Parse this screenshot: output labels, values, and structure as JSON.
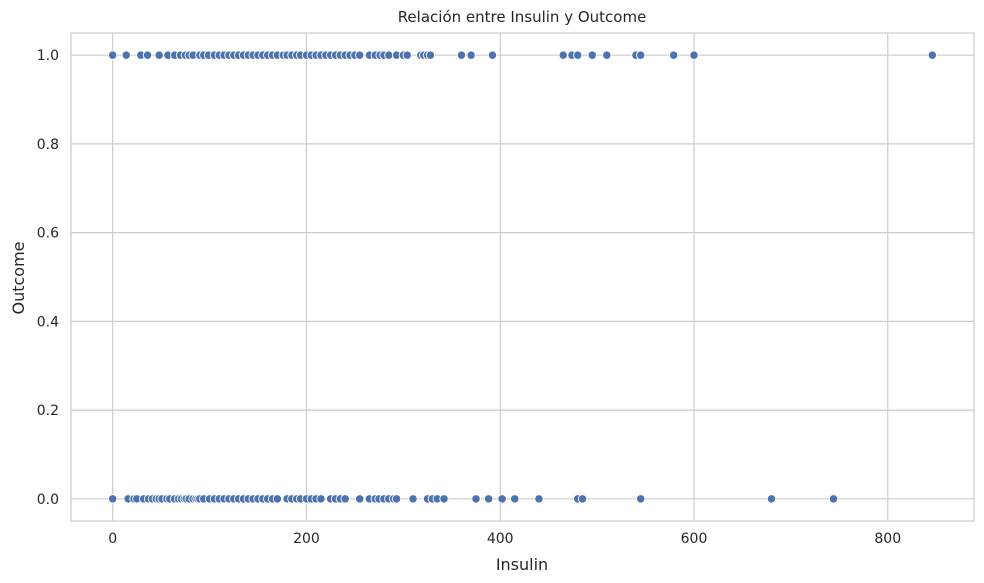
{
  "chart_data": {
    "type": "scatter",
    "title": "Relación entre Insulin y Outcome",
    "xlabel": "Insulin",
    "ylabel": "Outcome",
    "xlim": [
      -43,
      889
    ],
    "ylim": [
      -0.05,
      1.05
    ],
    "xticks": [
      0,
      200,
      400,
      600,
      800
    ],
    "xtick_labels": [
      "0",
      "200",
      "400",
      "600",
      "800"
    ],
    "yticks": [
      0.0,
      0.2,
      0.4,
      0.6,
      0.8,
      1.0
    ],
    "ytick_labels": [
      "0.0",
      "0.2",
      "0.4",
      "0.6",
      "0.8",
      "1.0"
    ],
    "grid": true,
    "color": "#4c72b0",
    "series": [
      {
        "y": 1,
        "x": [
          0,
          14,
          29,
          36,
          48,
          57,
          64,
          70,
          75,
          79,
          83,
          90,
          94,
          99,
          105,
          110,
          115,
          120,
          125,
          130,
          135,
          140,
          145,
          150,
          155,
          160,
          165,
          170,
          176,
          180,
          185,
          190,
          194,
          200,
          205,
          210,
          215,
          220,
          225,
          230,
          235,
          240,
          245,
          250,
          255,
          265,
          271,
          276,
          280,
          285,
          293,
          300,
          304,
          318,
          321,
          325,
          328,
          360,
          370,
          392,
          465,
          474,
          480,
          495,
          510,
          540,
          545,
          579,
          600,
          846
        ]
      },
      {
        "y": 0,
        "x": [
          0,
          16,
          22,
          25,
          32,
          37,
          41,
          45,
          48,
          51,
          56,
          59,
          64,
          68,
          71,
          74,
          76,
          79,
          83,
          86,
          88,
          90,
          94,
          100,
          105,
          110,
          115,
          120,
          125,
          130,
          135,
          140,
          145,
          150,
          155,
          160,
          165,
          170,
          180,
          185,
          190,
          194,
          200,
          205,
          210,
          215,
          225,
          230,
          235,
          240,
          255,
          265,
          271,
          275,
          280,
          285,
          290,
          293,
          310,
          325,
          330,
          335,
          342,
          375,
          388,
          402,
          415,
          440,
          480,
          485,
          545,
          680,
          744
        ]
      }
    ]
  }
}
